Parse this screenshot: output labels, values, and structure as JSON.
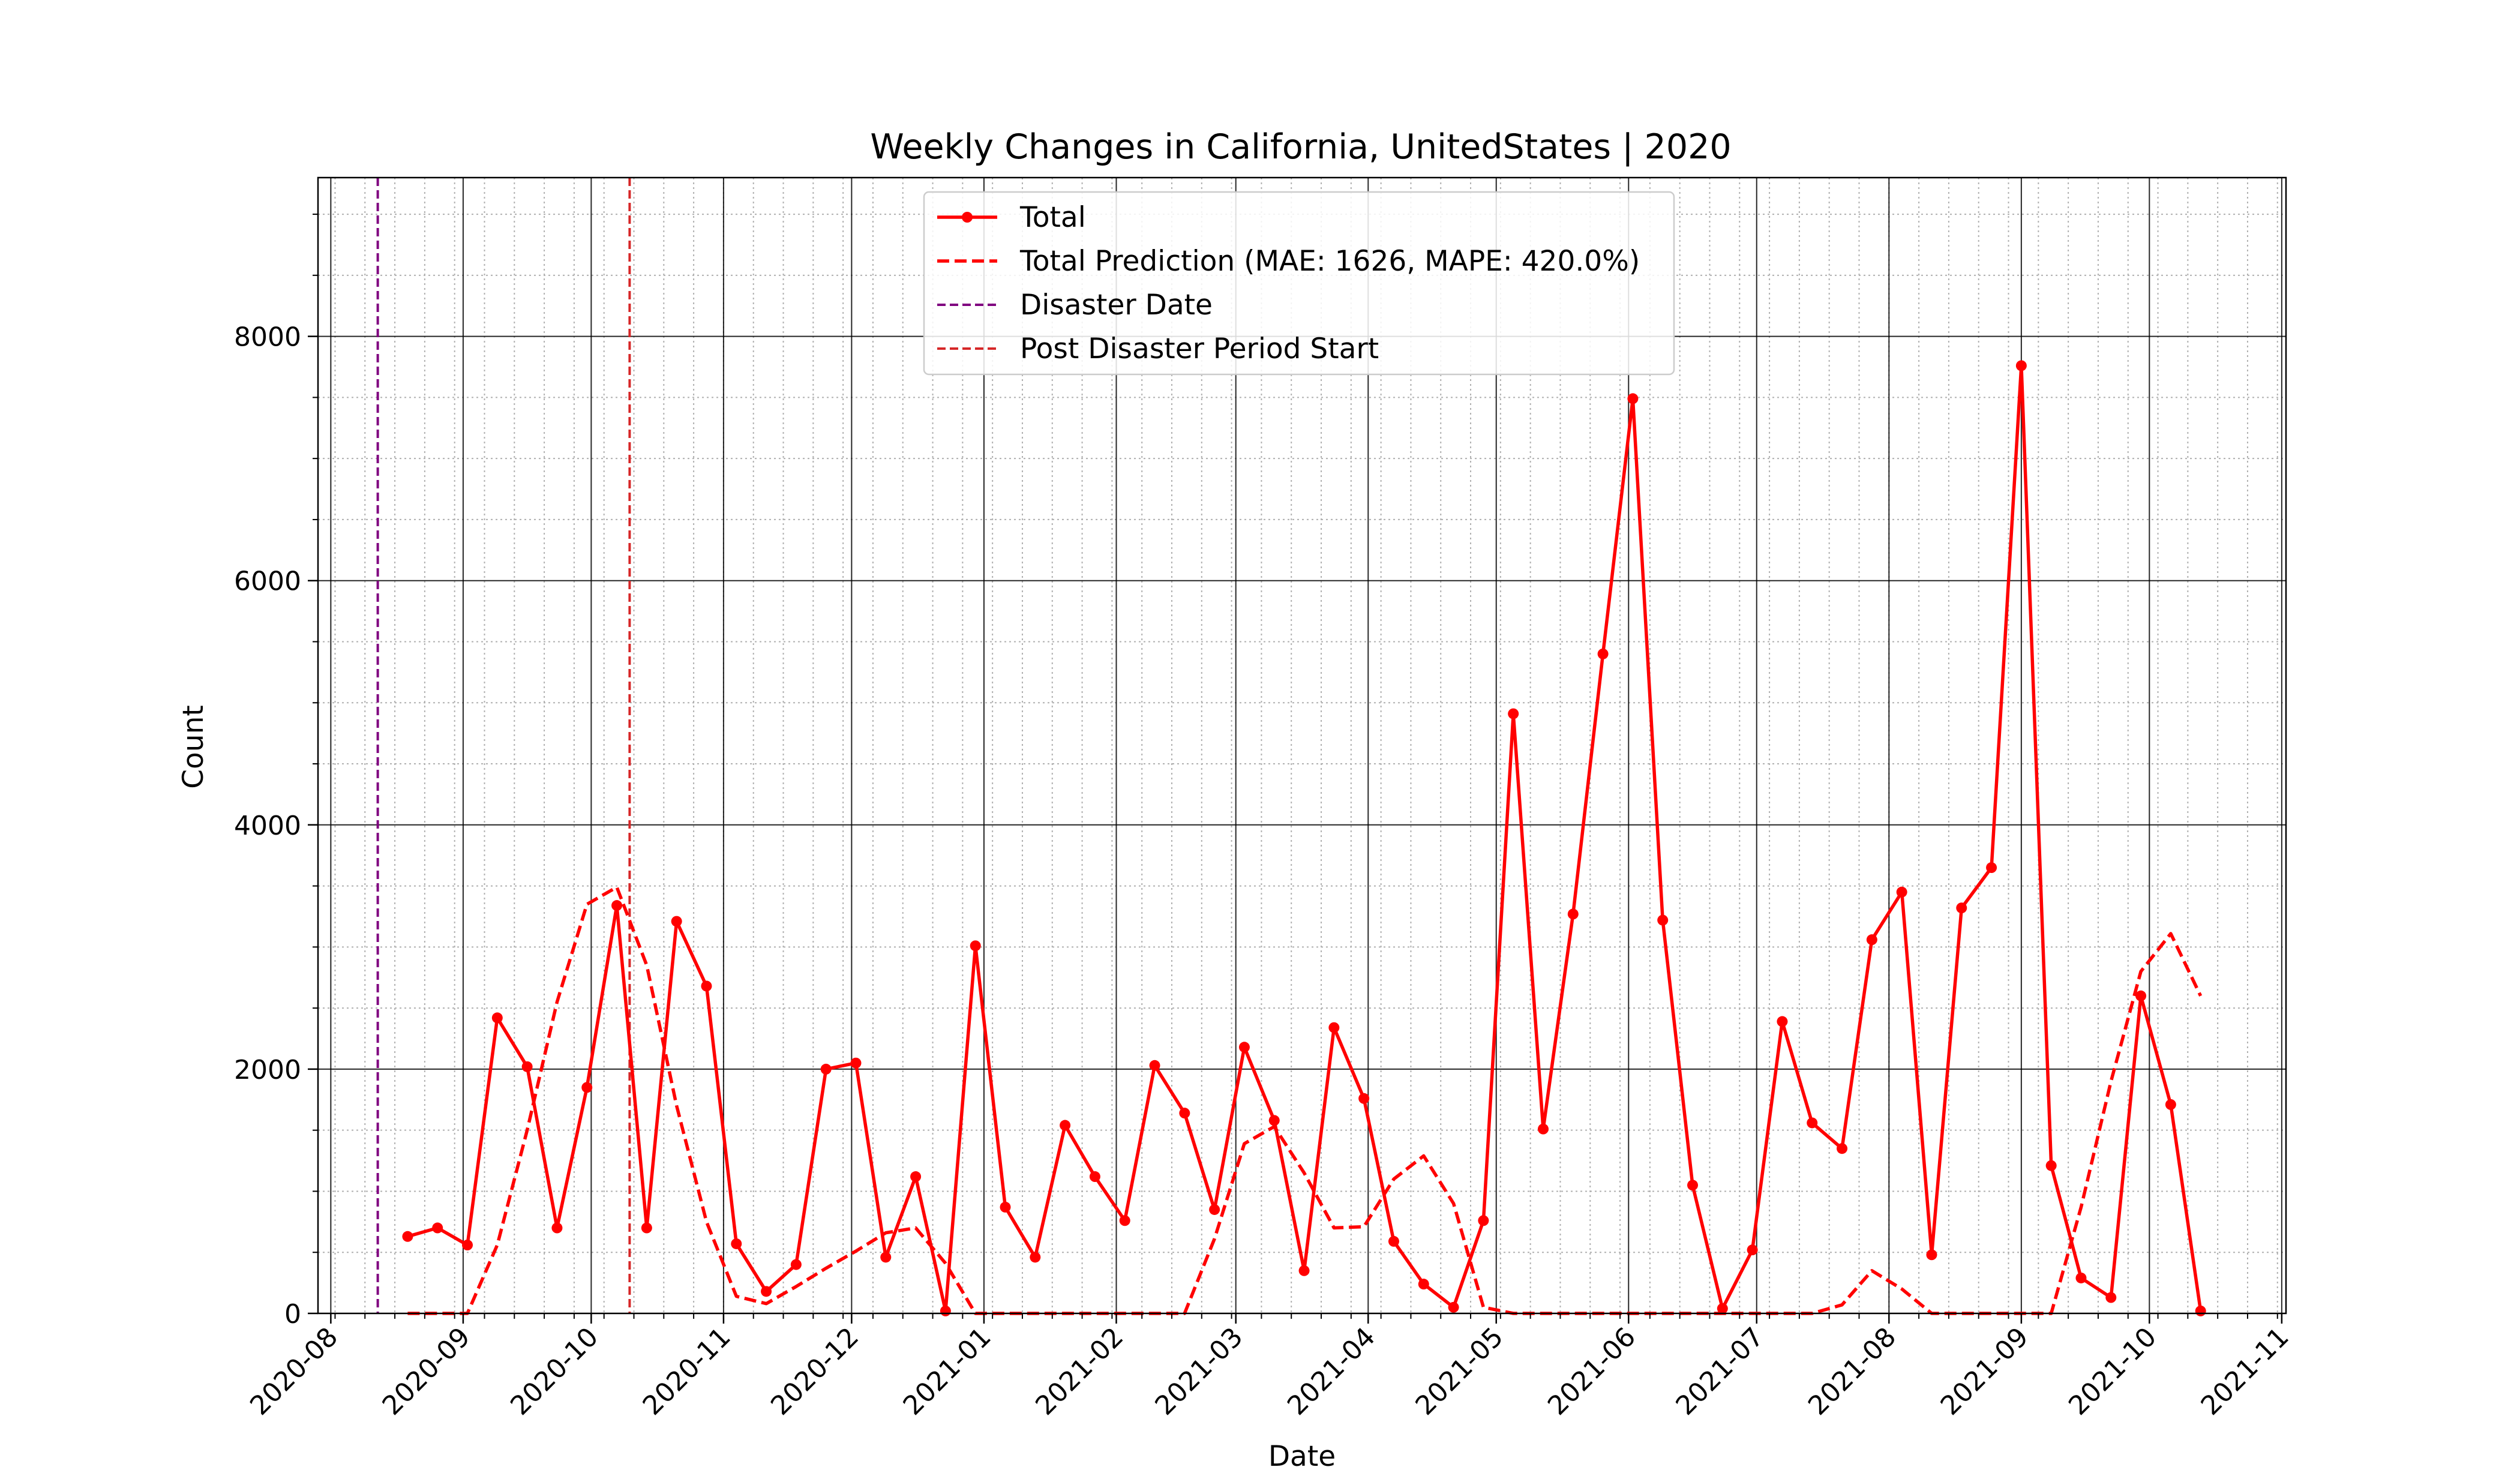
{
  "chart_data": {
    "type": "line",
    "title": "Weekly Changes in California, UnitedStates | 2020",
    "xlabel": "Date",
    "ylabel": "Count",
    "xlim": [
      "2020-07-29",
      "2021-11-02"
    ],
    "ylim": [
      0,
      9300
    ],
    "grid": "on (major and minor)",
    "legend_position": "upper center",
    "x_ticks": [
      "2020-08-01",
      "2020-09-01",
      "2020-10-01",
      "2020-11-01",
      "2020-12-01",
      "2021-01-01",
      "2021-02-01",
      "2021-03-01",
      "2021-04-01",
      "2021-05-01",
      "2021-06-01",
      "2021-07-01",
      "2021-08-01",
      "2021-09-01",
      "2021-10-01",
      "2021-11-01"
    ],
    "x_tick_labels": [
      "2020-08",
      "2020-09",
      "2020-10",
      "2020-11",
      "2020-12",
      "2021-01",
      "2021-02",
      "2021-03",
      "2021-04",
      "2021-05",
      "2021-06",
      "2021-07",
      "2021-08",
      "2021-09",
      "2021-10",
      "2021-11"
    ],
    "y_ticks": [
      0,
      2000,
      4000,
      6000,
      8000
    ],
    "y_tick_labels": [
      "0",
      "2000",
      "4000",
      "6000",
      "8000"
    ],
    "x": [
      "2020-08-19",
      "2020-08-26",
      "2020-09-02",
      "2020-09-09",
      "2020-09-16",
      "2020-09-23",
      "2020-09-30",
      "2020-10-07",
      "2020-10-14",
      "2020-10-21",
      "2020-10-28",
      "2020-11-04",
      "2020-11-11",
      "2020-11-18",
      "2020-11-25",
      "2020-12-02",
      "2020-12-09",
      "2020-12-16",
      "2020-12-23",
      "2020-12-30",
      "2021-01-06",
      "2021-01-13",
      "2021-01-20",
      "2021-01-27",
      "2021-02-03",
      "2021-02-10",
      "2021-02-17",
      "2021-02-24",
      "2021-03-03",
      "2021-03-10",
      "2021-03-17",
      "2021-03-24",
      "2021-03-31",
      "2021-04-07",
      "2021-04-14",
      "2021-04-21",
      "2021-04-28",
      "2021-05-05",
      "2021-05-12",
      "2021-05-19",
      "2021-05-26",
      "2021-06-02",
      "2021-06-09",
      "2021-06-16",
      "2021-06-23",
      "2021-06-30",
      "2021-07-07",
      "2021-07-14",
      "2021-07-21",
      "2021-07-28",
      "2021-08-04",
      "2021-08-11",
      "2021-08-18",
      "2021-08-25",
      "2021-09-01",
      "2021-09-08",
      "2021-09-15",
      "2021-09-22",
      "2021-09-29",
      "2021-10-06",
      "2021-10-13"
    ],
    "series": [
      {
        "name": "Total",
        "color": "#ff0000",
        "style": "solid line with circle markers",
        "values": [
          630,
          700,
          560,
          2420,
          2020,
          700,
          1850,
          3340,
          700,
          3210,
          2680,
          570,
          180,
          400,
          2000,
          2050,
          460,
          1120,
          20,
          3010,
          870,
          460,
          1540,
          1120,
          760,
          2030,
          1640,
          850,
          2180,
          1580,
          350,
          2340,
          1760,
          590,
          240,
          50,
          760,
          4910,
          1510,
          3270,
          5400,
          7490,
          3220,
          1050,
          40,
          520,
          2390,
          1560,
          1350,
          3060,
          3450,
          480,
          3320,
          3650,
          7760,
          1210,
          290,
          130,
          2600,
          1710,
          20
        ]
      },
      {
        "name": "Total Prediction (MAE: 1626, MAPE: 420.0%)",
        "color": "#ff0000",
        "style": "dashed line",
        "values": [
          0,
          0,
          0,
          560,
          1500,
          2550,
          3350,
          3490,
          2850,
          1700,
          750,
          140,
          80,
          220,
          370,
          510,
          660,
          700,
          410,
          0,
          0,
          0,
          0,
          0,
          0,
          0,
          0,
          610,
          1390,
          1530,
          1150,
          700,
          710,
          1100,
          1290,
          900,
          50,
          0,
          0,
          0,
          0,
          0,
          0,
          0,
          0,
          0,
          0,
          0,
          70,
          350,
          200,
          0,
          0,
          0,
          0,
          0,
          870,
          1900,
          2800,
          3110,
          2600
        ]
      }
    ],
    "vertical_lines": [
      {
        "name": "Disaster Date",
        "x": "2020-08-12",
        "color": "#800080",
        "style": "dashed"
      },
      {
        "name": "Post Disaster Period Start",
        "x": "2020-10-10",
        "color": "#d62728",
        "style": "dashed"
      }
    ]
  }
}
